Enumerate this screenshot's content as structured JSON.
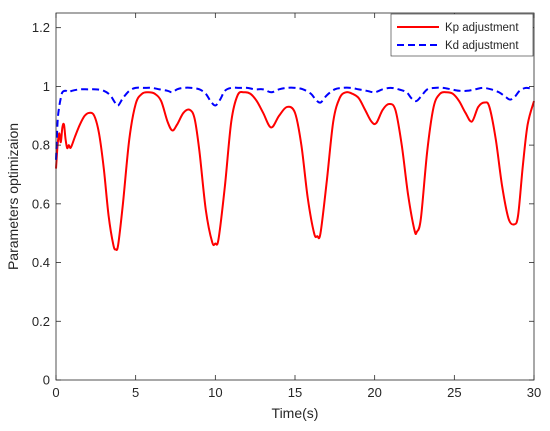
{
  "chart_data": {
    "type": "line",
    "title": "",
    "xlabel": "Time(s)",
    "ylabel": "Parameters optimizaion",
    "xlim": [
      0,
      30
    ],
    "ylim": [
      0,
      1.25
    ],
    "xticks": [
      0,
      5,
      10,
      15,
      20,
      25,
      30
    ],
    "yticks": [
      0,
      0.2,
      0.4,
      0.6,
      0.8,
      1,
      1.2
    ],
    "xtick_labels": [
      "0",
      "5",
      "10",
      "15",
      "20",
      "25",
      "30"
    ],
    "ytick_labels": [
      "0",
      "0.2",
      "0.4",
      "0.6",
      "0.8",
      "1",
      "1.2"
    ],
    "grid": false,
    "legend_position": "top-right",
    "series": [
      {
        "name": "Kp adjustment",
        "color": "#ff0000",
        "style": "solid",
        "x": [
          0,
          0.1,
          0.2,
          0.3,
          0.4,
          0.5,
          0.6,
          0.7,
          0.8,
          0.9,
          1.0,
          1.2,
          1.5,
          1.8,
          2.1,
          2.4,
          2.7,
          3.0,
          3.3,
          3.6,
          3.75,
          3.9,
          4.2,
          4.6,
          5.0,
          5.4,
          5.8,
          6.2,
          6.6,
          7.0,
          7.3,
          7.6,
          8.0,
          8.4,
          8.7,
          9.0,
          9.4,
          9.8,
          10.0,
          10.2,
          10.6,
          11.0,
          11.4,
          11.8,
          12.2,
          12.6,
          13.0,
          13.5,
          14.0,
          14.5,
          15.0,
          15.4,
          15.8,
          16.2,
          16.4,
          16.6,
          17.0,
          17.4,
          17.8,
          18.2,
          18.6,
          19.0,
          19.4,
          19.8,
          20.1,
          20.5,
          20.9,
          21.3,
          21.7,
          22.1,
          22.5,
          22.65,
          22.9,
          23.3,
          23.7,
          24.1,
          24.5,
          24.9,
          25.3,
          25.7,
          26.1,
          26.5,
          26.9,
          27.2,
          27.6,
          28.0,
          28.4,
          28.75,
          29.0,
          29.3,
          29.6,
          30.0
        ],
        "values": [
          0.72,
          0.8,
          0.84,
          0.81,
          0.86,
          0.87,
          0.82,
          0.79,
          0.8,
          0.79,
          0.8,
          0.83,
          0.87,
          0.9,
          0.91,
          0.9,
          0.84,
          0.72,
          0.56,
          0.46,
          0.445,
          0.46,
          0.6,
          0.82,
          0.94,
          0.975,
          0.98,
          0.975,
          0.95,
          0.88,
          0.85,
          0.87,
          0.91,
          0.92,
          0.89,
          0.78,
          0.58,
          0.47,
          0.465,
          0.48,
          0.66,
          0.88,
          0.97,
          0.98,
          0.975,
          0.95,
          0.91,
          0.86,
          0.9,
          0.93,
          0.91,
          0.8,
          0.62,
          0.5,
          0.49,
          0.5,
          0.68,
          0.88,
          0.96,
          0.98,
          0.975,
          0.96,
          0.92,
          0.88,
          0.875,
          0.92,
          0.94,
          0.92,
          0.8,
          0.63,
          0.51,
          0.505,
          0.55,
          0.78,
          0.93,
          0.975,
          0.98,
          0.975,
          0.95,
          0.91,
          0.88,
          0.93,
          0.945,
          0.93,
          0.82,
          0.66,
          0.55,
          0.53,
          0.56,
          0.73,
          0.87,
          0.95
        ]
      },
      {
        "name": "Kd adjustment",
        "color": "#0000ff",
        "style": "dashed",
        "x": [
          0,
          0.1,
          0.2,
          0.3,
          0.4,
          0.6,
          0.8,
          1.0,
          1.5,
          2.0,
          2.5,
          3.0,
          3.4,
          3.7,
          3.9,
          4.2,
          4.6,
          5.0,
          5.5,
          6.0,
          6.5,
          7.0,
          7.3,
          7.6,
          8.0,
          8.5,
          9.0,
          9.4,
          9.7,
          10.0,
          10.3,
          10.6,
          11.0,
          11.5,
          12.0,
          12.5,
          13.0,
          13.5,
          14.0,
          14.5,
          15.0,
          15.5,
          16.0,
          16.3,
          16.6,
          17.0,
          17.5,
          18.0,
          18.5,
          19.0,
          19.5,
          20.0,
          20.5,
          21.0,
          21.5,
          22.0,
          22.3,
          22.6,
          22.9,
          23.3,
          23.8,
          24.3,
          24.8,
          25.3,
          25.8,
          26.3,
          26.8,
          27.3,
          27.8,
          28.2,
          28.5,
          28.8,
          29.1,
          29.5,
          30.0
        ],
        "values": [
          0.75,
          0.88,
          0.93,
          0.96,
          0.98,
          0.985,
          0.98,
          0.985,
          0.99,
          0.99,
          0.99,
          0.985,
          0.97,
          0.945,
          0.935,
          0.96,
          0.985,
          0.995,
          0.995,
          0.995,
          0.99,
          0.985,
          0.98,
          0.99,
          0.995,
          0.995,
          0.99,
          0.975,
          0.95,
          0.935,
          0.955,
          0.985,
          0.995,
          0.995,
          0.995,
          0.99,
          0.99,
          0.98,
          0.99,
          0.995,
          0.995,
          0.99,
          0.975,
          0.955,
          0.945,
          0.97,
          0.99,
          0.995,
          0.995,
          0.99,
          0.985,
          0.98,
          0.99,
          0.995,
          0.99,
          0.98,
          0.96,
          0.95,
          0.965,
          0.99,
          0.995,
          0.995,
          0.99,
          0.985,
          0.985,
          0.99,
          0.995,
          0.99,
          0.98,
          0.965,
          0.955,
          0.965,
          0.985,
          0.995,
          0.99
        ]
      }
    ]
  }
}
